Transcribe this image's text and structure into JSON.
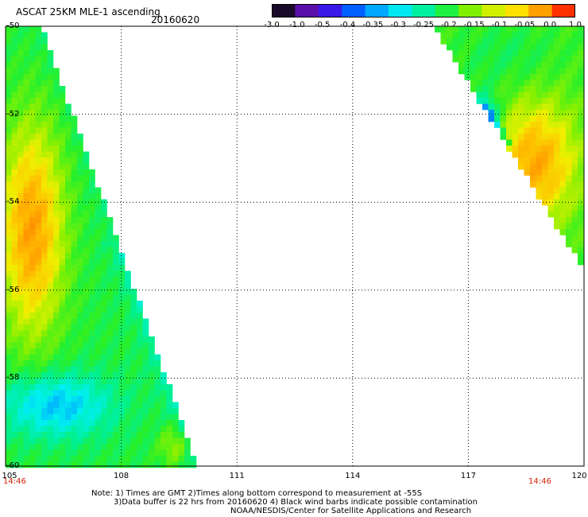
{
  "header": {
    "title": "ASCAT 25KM MLE-1 ascending",
    "date": "20160620"
  },
  "colorbar": {
    "ticks": [
      "-3.0",
      "-1.0",
      "-0.5",
      "-0.4",
      "-0.35",
      "-0.3",
      "-0.25",
      "-0.2",
      "-0.15",
      "-0.1",
      "-0.05",
      "0.0",
      "1.0"
    ],
    "colors": [
      "#1a0a2a",
      "#5a10a8",
      "#3a18e8",
      "#0060ff",
      "#00a8ff",
      "#00e8f0",
      "#00f0a0",
      "#20f040",
      "#80f000",
      "#d0f000",
      "#ffe000",
      "#ffa000",
      "#ff3000"
    ]
  },
  "map": {
    "lat_labels": [
      "-50",
      "-52",
      "-54",
      "-56",
      "-58",
      "-60"
    ],
    "lon_labels": [
      "105",
      "108",
      "111",
      "114",
      "117",
      "120"
    ],
    "time_labels": [
      "14:46",
      "14:46"
    ],
    "swaths": [
      {
        "name": "left-swath",
        "bottom_y_range": [
          -60,
          -56
        ],
        "color_hint": "orange core, green edges, cyan south"
      },
      {
        "name": "right-swath",
        "color_hint": "green north, yellow-orange center, cyan edge near -52.5"
      }
    ]
  },
  "notes": {
    "line1": "Note: 1) Times are GMT 2)Times along bottom correspond to measurement at -55S",
    "line2": "3)Data buffer is 22 hrs from 20160620 4) Black wind barbs indicate possible contamination",
    "line3": "NOAA/NESDIS/Center for Satellite Applications and Research"
  }
}
